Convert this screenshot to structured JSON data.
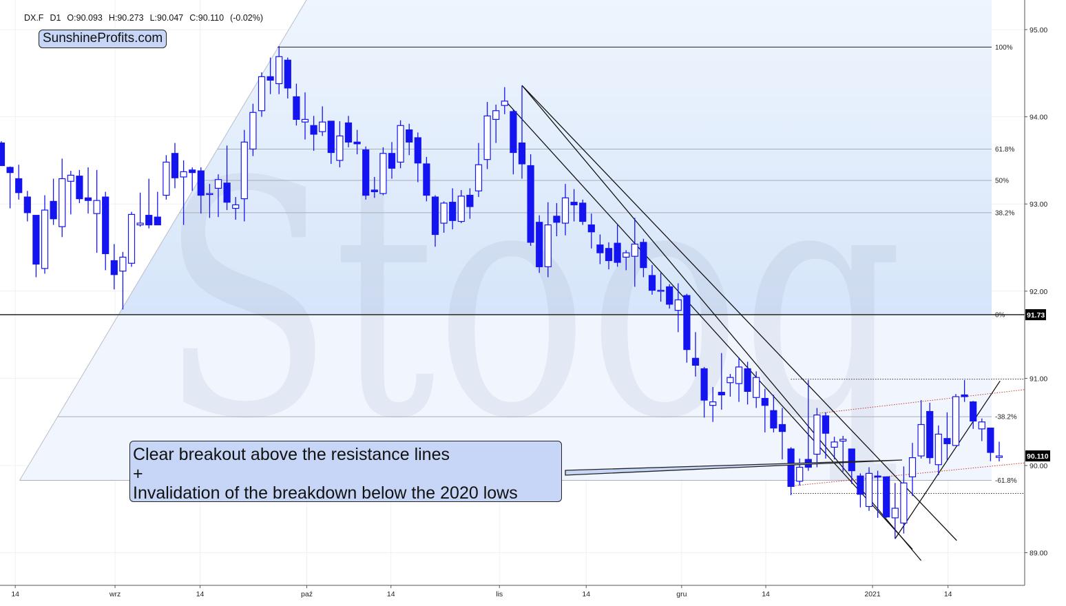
{
  "header": {
    "symbol": "DX.F",
    "interval": "D1",
    "open": "O:90.093",
    "high": "H:90.273",
    "low": "L:90.047",
    "close": "C:90.110",
    "change": "(-0.02%)"
  },
  "brand": "SunshineProfits.com",
  "watermark": "Stooq",
  "callout": {
    "line1": "Clear breakout above the resistance lines",
    "line2": "+",
    "line3": "Invalidation of the breakdown below the 2020 lows"
  },
  "colors": {
    "candle": "#1414f0",
    "fib_zone_upper": "#d9e7fb",
    "fib_zone_lower": "#f1f6fe",
    "trendline": "#111111",
    "dotted_red": "#c0392b",
    "marker_bg": "#000000"
  },
  "chart_data": {
    "type": "candlestick",
    "title": "",
    "ylim": [
      88.7,
      95.35
    ],
    "grid": true,
    "y_axis_position": "right",
    "y_ticks": [
      "95.00",
      "94.00",
      "93.00",
      "92.00",
      "91.00",
      "90.00",
      "89.00"
    ],
    "x_ticks": [
      {
        "label": "14",
        "index": 1.6
      },
      {
        "label": "wrz",
        "index": 13.1
      },
      {
        "label": "14",
        "index": 22.9
      },
      {
        "label": "paź",
        "index": 35.2
      },
      {
        "label": "14",
        "index": 44.9
      },
      {
        "label": "lis",
        "index": 57.4
      },
      {
        "label": "14",
        "index": 67.4
      },
      {
        "label": "gru",
        "index": 78.4
      },
      {
        "label": "14",
        "index": 88.1
      },
      {
        "label": "2021",
        "index": 100.4
      },
      {
        "label": "14",
        "index": 109.1
      }
    ],
    "price_markers": [
      {
        "label": "91.73",
        "price": 91.73
      },
      {
        "label": "90.110",
        "price": 90.11
      }
    ],
    "fib_levels": [
      {
        "label": "100%",
        "price": 94.8
      },
      {
        "label": "61.8%",
        "price": 93.63
      },
      {
        "label": "50%",
        "price": 93.27
      },
      {
        "label": "38.2%",
        "price": 92.9
      },
      {
        "label": "0%",
        "price": 91.73
      },
      {
        "label": "-38.2%",
        "price": 90.56
      },
      {
        "label": "-61.8%",
        "price": 89.83
      }
    ],
    "trendlines": [
      {
        "from": [
          60.0,
          94.36
        ],
        "to": [
          110.1,
          89.14
        ],
        "style": "solid"
      },
      {
        "from": [
          60.0,
          94.36
        ],
        "to": [
          106.0,
          88.91
        ],
        "style": "solid"
      },
      {
        "from": [
          58.2,
          94.17
        ],
        "to": [
          105.0,
          89.04
        ],
        "style": "solid"
      },
      {
        "from": [
          103.0,
          89.16
        ],
        "to": [
          115.1,
          90.97
        ],
        "style": "solid"
      },
      {
        "from": [
          94.3,
          90.6
        ],
        "to": [
          117.9,
          90.87
        ],
        "style": "dotted-red"
      },
      {
        "from": [
          91.5,
          89.77
        ],
        "to": [
          117.9,
          90.03
        ],
        "style": "dotted-red"
      },
      {
        "from": [
          91.0,
          90.99
        ],
        "to": [
          117.9,
          90.99
        ],
        "style": "dotted-black"
      },
      {
        "from": [
          91.0,
          89.68
        ],
        "to": [
          117.9,
          89.68
        ],
        "style": "dotted-black"
      }
    ],
    "candles_ohlc": [
      [
        93.7,
        93.72,
        93.44,
        93.44
      ],
      [
        93.42,
        93.43,
        92.95,
        93.36
      ],
      [
        93.29,
        93.45,
        93.05,
        93.13
      ],
      [
        93.08,
        93.15,
        92.8,
        92.9
      ],
      [
        92.87,
        92.87,
        92.16,
        92.31
      ],
      [
        92.26,
        93.1,
        92.2,
        92.93
      ],
      [
        93.03,
        93.29,
        92.76,
        92.83
      ],
      [
        92.74,
        93.52,
        92.62,
        93.29
      ],
      [
        93.26,
        93.38,
        92.88,
        93.33
      ],
      [
        93.32,
        93.39,
        93.01,
        93.06
      ],
      [
        93.07,
        93.42,
        92.89,
        93.04
      ],
      [
        92.89,
        93.39,
        92.44,
        93.04
      ],
      [
        93.08,
        93.14,
        92.24,
        92.43
      ],
      [
        92.35,
        92.54,
        92.02,
        92.19
      ],
      [
        92.23,
        92.45,
        91.79,
        92.39
      ],
      [
        92.32,
        92.91,
        92.28,
        92.88
      ],
      [
        92.76,
        93.13,
        92.74,
        92.78
      ],
      [
        92.87,
        93.29,
        92.72,
        92.76
      ],
      [
        92.85,
        93.14,
        92.76,
        92.76
      ],
      [
        93.1,
        93.56,
        93.05,
        93.48
      ],
      [
        93.58,
        93.7,
        93.18,
        93.3
      ],
      [
        93.31,
        93.5,
        92.76,
        93.37
      ],
      [
        93.39,
        93.42,
        93.15,
        93.36
      ],
      [
        93.38,
        93.42,
        92.89,
        93.1
      ],
      [
        93.11,
        93.23,
        92.84,
        93.12
      ],
      [
        93.18,
        93.34,
        92.85,
        93.28
      ],
      [
        93.24,
        93.67,
        92.93,
        93.02
      ],
      [
        92.95,
        93.08,
        92.82,
        92.99
      ],
      [
        93.06,
        93.85,
        92.8,
        93.71
      ],
      [
        93.63,
        94.15,
        93.55,
        94.05
      ],
      [
        94.07,
        94.51,
        94.0,
        94.46
      ],
      [
        94.46,
        94.68,
        94.26,
        94.42
      ],
      [
        94.38,
        94.81,
        94.26,
        94.69
      ],
      [
        94.65,
        94.68,
        94.21,
        94.33
      ],
      [
        94.23,
        94.38,
        93.9,
        93.97
      ],
      [
        93.94,
        94.28,
        93.74,
        93.97
      ],
      [
        93.9,
        94.01,
        93.61,
        93.8
      ],
      [
        93.83,
        94.12,
        93.78,
        93.94
      ],
      [
        93.95,
        93.95,
        93.46,
        93.59
      ],
      [
        93.5,
        93.95,
        93.42,
        93.78
      ],
      [
        93.93,
        94.01,
        93.65,
        93.71
      ],
      [
        93.71,
        93.85,
        93.57,
        93.69
      ],
      [
        93.62,
        93.66,
        93.05,
        93.1
      ],
      [
        93.16,
        93.31,
        93.07,
        93.14
      ],
      [
        93.12,
        93.65,
        93.1,
        93.58
      ],
      [
        93.58,
        93.71,
        93.29,
        93.41
      ],
      [
        93.48,
        93.96,
        93.41,
        93.9
      ],
      [
        93.85,
        93.92,
        93.56,
        93.71
      ],
      [
        93.76,
        93.82,
        93.25,
        93.47
      ],
      [
        93.46,
        93.54,
        93.03,
        93.1
      ],
      [
        93.08,
        93.1,
        92.51,
        92.65
      ],
      [
        92.78,
        93.03,
        92.67,
        93.01
      ],
      [
        93.02,
        93.18,
        92.71,
        92.81
      ],
      [
        92.8,
        93.16,
        92.78,
        93.09
      ],
      [
        93.1,
        93.18,
        92.83,
        92.97
      ],
      [
        93.15,
        93.7,
        93.08,
        93.45
      ],
      [
        93.51,
        94.17,
        93.4,
        94.01
      ],
      [
        93.97,
        94.14,
        93.7,
        94.07
      ],
      [
        94.13,
        94.34,
        94.03,
        94.18
      ],
      [
        94.06,
        94.08,
        93.34,
        93.59
      ],
      [
        93.7,
        94.36,
        93.29,
        93.46
      ],
      [
        93.44,
        93.57,
        92.52,
        92.56
      ],
      [
        92.79,
        92.87,
        92.21,
        92.28
      ],
      [
        92.28,
        93.02,
        92.16,
        92.76
      ],
      [
        92.86,
        93.01,
        92.63,
        92.79
      ],
      [
        92.78,
        93.23,
        92.64,
        93.07
      ],
      [
        93.02,
        93.17,
        92.8,
        92.99
      ],
      [
        93.01,
        93.05,
        92.76,
        92.8
      ],
      [
        92.76,
        92.89,
        92.49,
        92.68
      ],
      [
        92.53,
        92.65,
        92.31,
        92.44
      ],
      [
        92.49,
        92.56,
        92.25,
        92.35
      ],
      [
        92.55,
        92.76,
        92.28,
        92.33
      ],
      [
        92.39,
        92.47,
        92.24,
        92.44
      ],
      [
        92.4,
        92.84,
        92.05,
        92.54
      ],
      [
        92.56,
        92.6,
        92.16,
        92.27
      ],
      [
        92.18,
        92.3,
        91.96,
        92.01
      ],
      [
        92.0,
        92.21,
        91.88,
        92.01
      ],
      [
        92.05,
        92.08,
        91.8,
        91.85
      ],
      [
        91.78,
        92.09,
        91.53,
        91.9
      ],
      [
        91.95,
        91.97,
        91.18,
        91.33
      ],
      [
        91.23,
        91.53,
        91.02,
        91.15
      ],
      [
        91.11,
        91.13,
        90.55,
        90.75
      ],
      [
        90.69,
        90.9,
        90.5,
        90.73
      ],
      [
        90.84,
        91.29,
        90.64,
        90.81
      ],
      [
        90.95,
        91.05,
        90.79,
        91.01
      ],
      [
        90.94,
        91.24,
        90.73,
        91.13
      ],
      [
        91.11,
        91.19,
        90.7,
        90.85
      ],
      [
        90.78,
        91.08,
        90.66,
        91.01
      ],
      [
        90.77,
        90.88,
        90.38,
        90.69
      ],
      [
        90.63,
        90.81,
        90.38,
        90.43
      ],
      [
        90.47,
        90.66,
        90.07,
        90.39
      ],
      [
        90.19,
        90.21,
        89.66,
        89.76
      ],
      [
        89.82,
        90.08,
        89.77,
        89.98
      ],
      [
        90.07,
        90.98,
        89.94,
        89.98
      ],
      [
        90.13,
        90.66,
        89.98,
        90.58
      ],
      [
        90.57,
        90.61,
        90.08,
        90.37
      ],
      [
        90.21,
        90.33,
        90.07,
        90.27
      ],
      [
        90.28,
        90.34,
        89.93,
        90.3
      ],
      [
        90.19,
        90.19,
        89.79,
        89.94
      ],
      [
        89.88,
        89.91,
        89.52,
        89.67
      ],
      [
        89.53,
        89.98,
        89.48,
        89.91
      ],
      [
        89.88,
        89.94,
        89.4,
        89.87
      ],
      [
        89.87,
        89.87,
        89.4,
        89.41
      ],
      [
        89.4,
        89.8,
        89.16,
        89.51
      ],
      [
        89.34,
        89.99,
        89.22,
        89.8
      ],
      [
        89.87,
        90.26,
        89.65,
        90.09
      ],
      [
        90.11,
        90.75,
        90.08,
        90.47
      ],
      [
        90.62,
        90.72,
        90.02,
        90.09
      ],
      [
        90.01,
        90.46,
        89.89,
        90.36
      ],
      [
        90.31,
        90.61,
        90.06,
        90.25
      ],
      [
        90.23,
        90.82,
        90.23,
        90.79
      ],
      [
        90.81,
        90.98,
        90.73,
        90.79
      ],
      [
        90.73,
        90.74,
        90.42,
        90.51
      ],
      [
        90.42,
        90.54,
        90.28,
        90.5
      ],
      [
        90.43,
        90.43,
        90.05,
        90.15
      ],
      [
        90.093,
        90.273,
        90.047,
        90.11
      ]
    ]
  }
}
